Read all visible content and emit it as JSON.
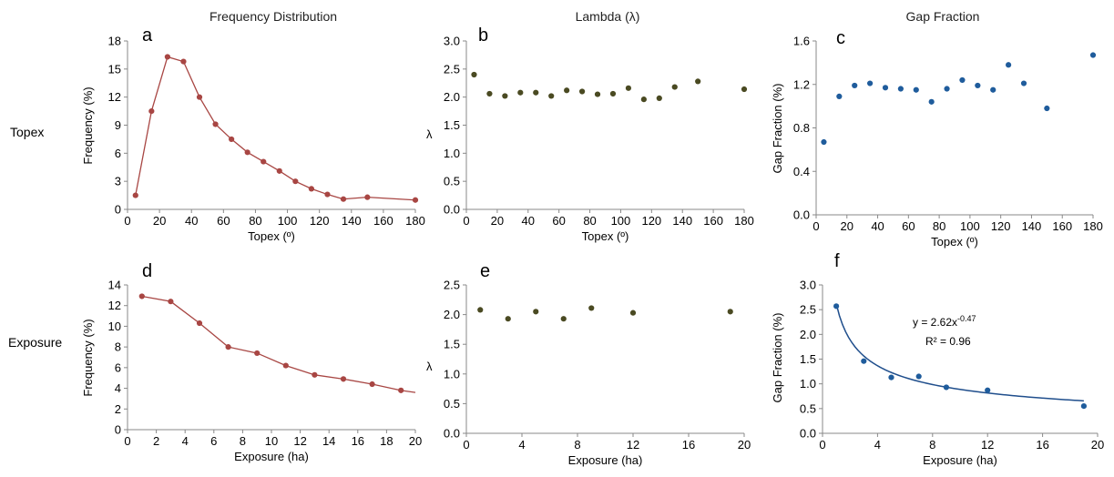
{
  "colors": {
    "red": "#A84643",
    "olive": "#4A4A22",
    "blue": "#1F5C9C",
    "axis": "#888888"
  },
  "column_titles": [
    "Frequency Distribution",
    "Lambda (λ)",
    "Gap Fraction"
  ],
  "row_labels": [
    "Topex",
    "Exposure"
  ],
  "chart_data": [
    {
      "panel": "a",
      "type": "line",
      "xlabel": "Topex (º)",
      "ylabel": "Frequency (%)",
      "xlim": [
        0,
        180
      ],
      "xticks": [
        0,
        20,
        40,
        60,
        80,
        100,
        120,
        140,
        160,
        180
      ],
      "ylim": [
        0,
        18
      ],
      "yticks": [
        0,
        3,
        6,
        9,
        12,
        15,
        18
      ],
      "ytick_labels": [
        "0",
        "3",
        "6",
        "9",
        "12",
        "15",
        "18"
      ],
      "x": [
        5,
        15,
        25,
        35,
        45,
        55,
        65,
        75,
        85,
        95,
        105,
        115,
        125,
        135,
        150,
        180
      ],
      "y": [
        1.5,
        10.5,
        16.3,
        15.8,
        12.0,
        9.1,
        7.5,
        6.1,
        5.1,
        4.1,
        3.0,
        2.2,
        1.6,
        1.1,
        1.3,
        1.0
      ]
    },
    {
      "panel": "b",
      "type": "scatter",
      "xlabel": "Topex (º)",
      "ylabel": "λ",
      "xlim": [
        0,
        180
      ],
      "xticks": [
        0,
        20,
        40,
        60,
        80,
        100,
        120,
        140,
        160,
        180
      ],
      "ylim": [
        0,
        3
      ],
      "yticks": [
        0,
        0.5,
        1,
        1.5,
        2,
        2.5,
        3
      ],
      "ytick_labels": [
        "0.0",
        "0.5",
        "1.0",
        "1.5",
        "2.0",
        "2.5",
        "3.0"
      ],
      "x": [
        5,
        15,
        25,
        35,
        45,
        55,
        65,
        75,
        85,
        95,
        105,
        115,
        125,
        135,
        150,
        180
      ],
      "y": [
        2.4,
        2.06,
        2.02,
        2.08,
        2.08,
        2.02,
        2.12,
        2.1,
        2.05,
        2.06,
        2.16,
        1.96,
        1.98,
        2.18,
        2.28,
        2.14
      ]
    },
    {
      "panel": "c",
      "type": "scatter",
      "xlabel": "Topex (º)",
      "ylabel": "Gap Fraction (%)",
      "xlim": [
        0,
        180
      ],
      "xticks": [
        0,
        20,
        40,
        60,
        80,
        100,
        120,
        140,
        160,
        180
      ],
      "ylim": [
        0,
        1.6
      ],
      "yticks": [
        0,
        0.4,
        0.8,
        1.2,
        1.6
      ],
      "ytick_labels": [
        "0.0",
        "0.4",
        "0.8",
        "1.2",
        "1.6"
      ],
      "x": [
        5,
        15,
        25,
        35,
        45,
        55,
        65,
        75,
        85,
        95,
        105,
        115,
        125,
        135,
        150,
        180
      ],
      "y": [
        0.67,
        1.09,
        1.19,
        1.21,
        1.17,
        1.16,
        1.15,
        1.04,
        1.16,
        1.24,
        1.19,
        1.15,
        1.38,
        1.21,
        0.98,
        1.47
      ]
    },
    {
      "panel": "d",
      "type": "line",
      "xlabel": "Exposure (ha)",
      "ylabel": "Frequency (%)",
      "xlim": [
        0,
        20
      ],
      "xticks": [
        0,
        2,
        4,
        6,
        8,
        10,
        12,
        14,
        16,
        18,
        20
      ],
      "ylim": [
        0,
        14
      ],
      "yticks": [
        0,
        2,
        4,
        6,
        8,
        10,
        12,
        14
      ],
      "ytick_labels": [
        "0",
        "2",
        "4",
        "6",
        "8",
        "10",
        "12",
        "14"
      ],
      "x": [
        1,
        3,
        5,
        7,
        9,
        11,
        13,
        15,
        17,
        19,
        20
      ],
      "y": [
        12.9,
        12.4,
        10.3,
        8.0,
        7.4,
        6.2,
        5.3,
        4.9,
        4.4,
        3.8,
        3.6
      ],
      "marker_count": 10
    },
    {
      "panel": "e",
      "type": "scatter",
      "xlabel": "Exposure (ha)",
      "ylabel": "λ",
      "xlim": [
        0,
        20
      ],
      "xticks": [
        0,
        4,
        8,
        12,
        16,
        20
      ],
      "ylim": [
        0,
        2.5
      ],
      "yticks": [
        0,
        0.5,
        1,
        1.5,
        2,
        2.5
      ],
      "ytick_labels": [
        "0.0",
        "0.5",
        "1.0",
        "1.5",
        "2.0",
        "2.5"
      ],
      "x": [
        1,
        3,
        5,
        7,
        9,
        12,
        19
      ],
      "y": [
        2.08,
        1.93,
        2.05,
        1.93,
        2.11,
        2.03,
        2.05
      ]
    },
    {
      "panel": "f",
      "type": "scatter",
      "xlabel": "Exposure (ha)",
      "ylabel": "Gap Fraction (%)",
      "xlim": [
        0,
        20
      ],
      "xticks": [
        0,
        4,
        8,
        12,
        16,
        20
      ],
      "ylim": [
        0,
        3
      ],
      "yticks": [
        0,
        0.5,
        1,
        1.5,
        2,
        2.5,
        3
      ],
      "ytick_labels": [
        "0.0",
        "0.5",
        "1.0",
        "1.5",
        "2.0",
        "2.5",
        "3.0"
      ],
      "x": [
        1,
        3,
        5,
        7,
        9,
        12,
        19
      ],
      "y": [
        2.57,
        1.46,
        1.13,
        1.15,
        0.93,
        0.87,
        0.55
      ],
      "fit": {
        "a": 2.62,
        "b": -0.47,
        "x_from": 1,
        "x_to": 19
      },
      "annotation": {
        "equation_base": "y = 2.62x",
        "equation_exp": "-0.47",
        "r2_text": "R² = 0.96"
      }
    }
  ]
}
